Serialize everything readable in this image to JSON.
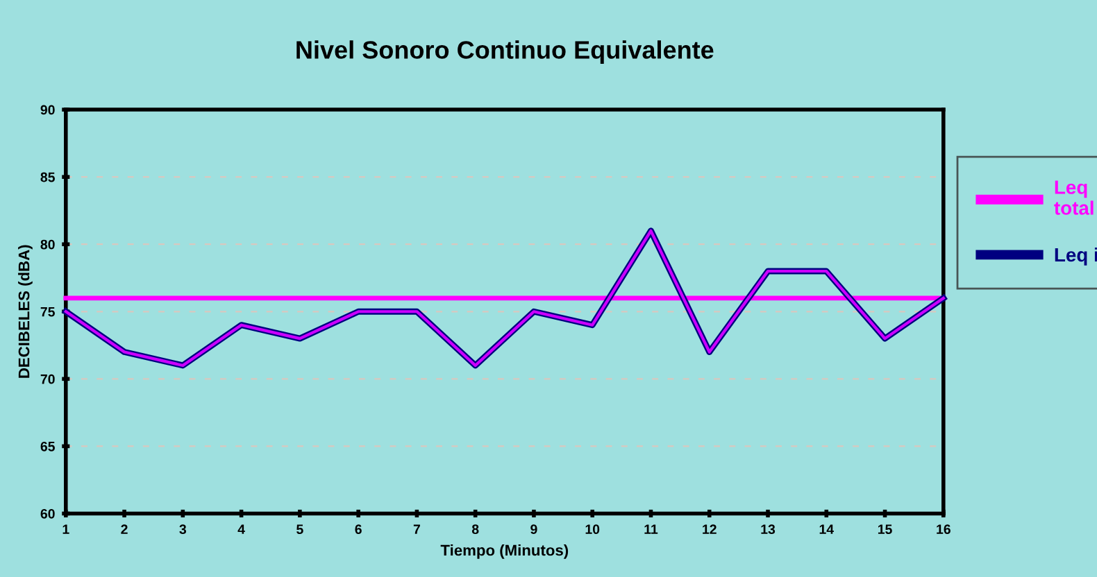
{
  "chart_data": {
    "type": "line",
    "title": "Nivel Sonoro Continuo Equivalente",
    "xlabel": "Tiempo (Minutos)",
    "ylabel": "DECIBELES (dBA)",
    "x": [
      1,
      2,
      3,
      4,
      5,
      6,
      7,
      8,
      9,
      10,
      11,
      12,
      13,
      14,
      15,
      16
    ],
    "series": [
      {
        "name": "Leq\ntotal",
        "color": "#ff00ff",
        "values": [
          76,
          76,
          76,
          76,
          76,
          76,
          76,
          76,
          76,
          76,
          76,
          76,
          76,
          76,
          76,
          76
        ]
      },
      {
        "name": "Leq i",
        "color": "#000080",
        "values": [
          75,
          72,
          71,
          74,
          73,
          75,
          75,
          71,
          75,
          74,
          81,
          72,
          78,
          78,
          73,
          76
        ]
      }
    ],
    "xlim": [
      1,
      16
    ],
    "xticks": [
      1,
      2,
      3,
      4,
      5,
      6,
      7,
      8,
      9,
      10,
      11,
      12,
      13,
      14,
      15,
      16
    ],
    "ylim": [
      60,
      90
    ],
    "yticks": [
      60,
      65,
      70,
      75,
      80,
      85,
      90
    ],
    "grid": "y",
    "legend": "right",
    "marker": "none",
    "line_style": "solid"
  }
}
